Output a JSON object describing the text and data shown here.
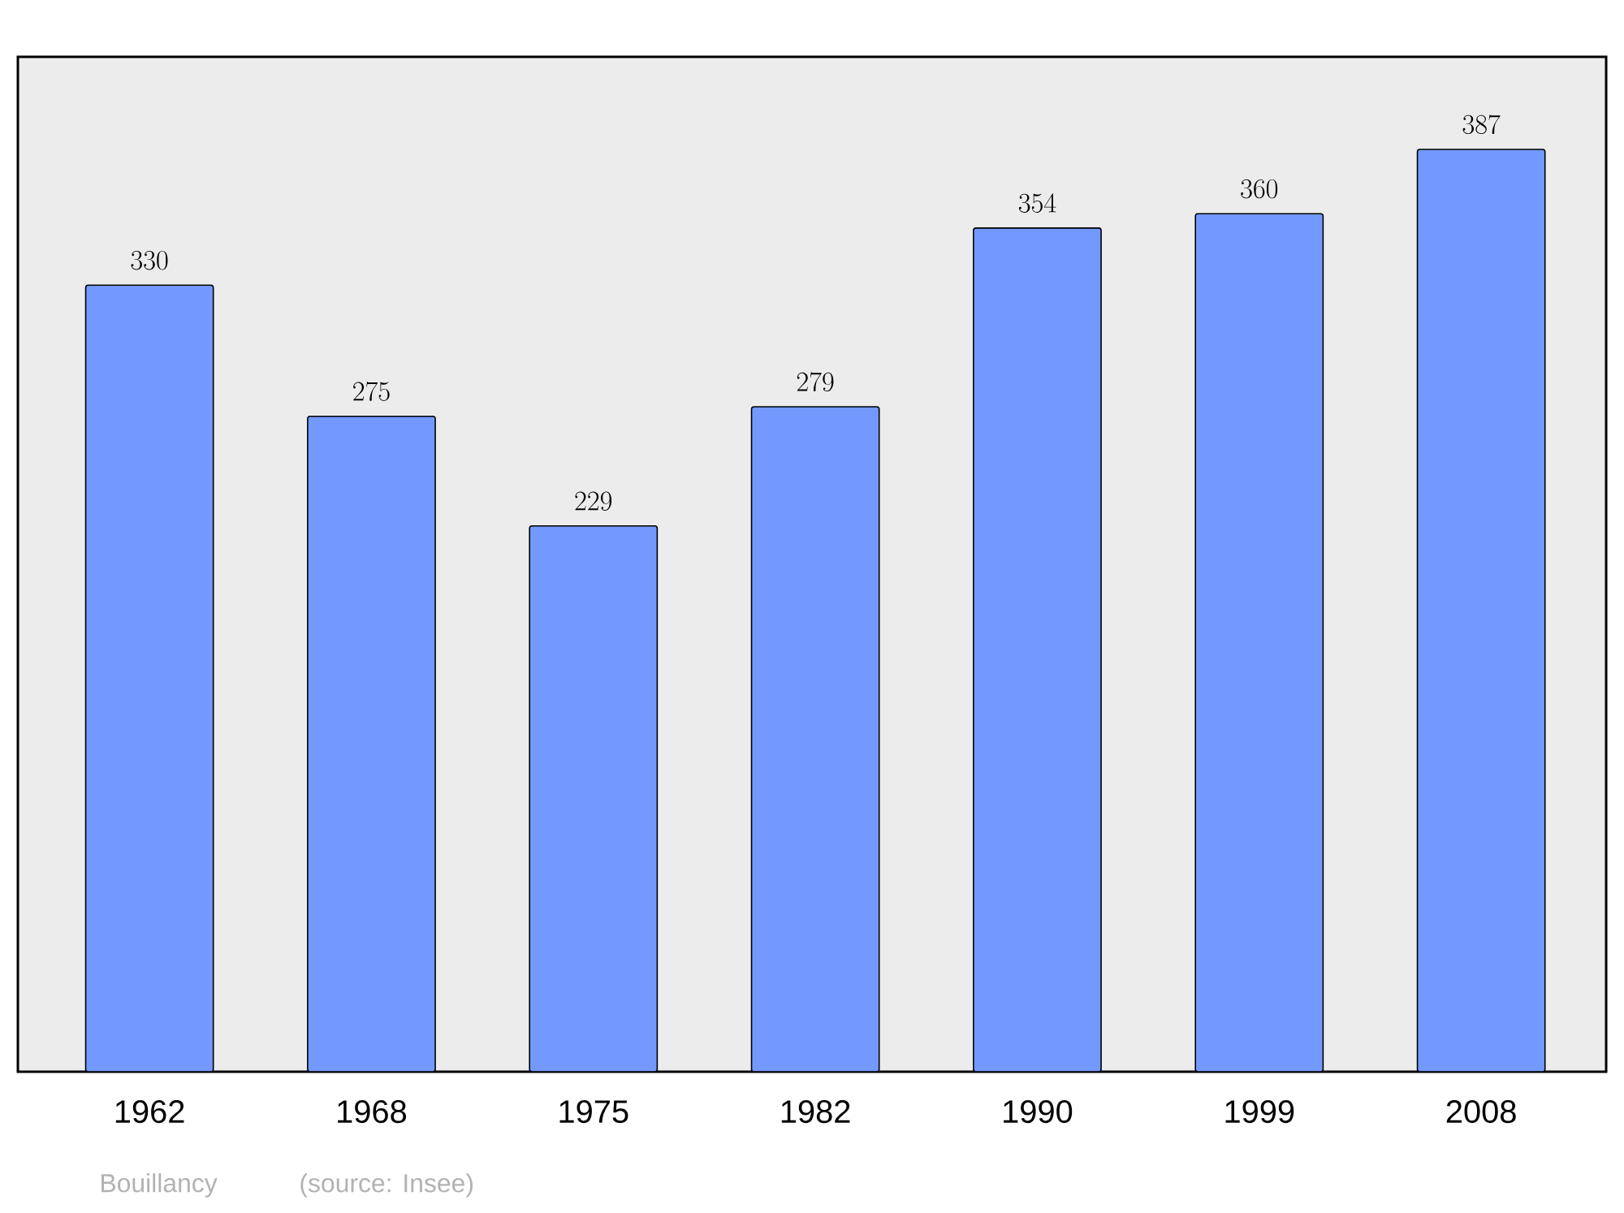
{
  "chart_data": {
    "type": "bar",
    "categories": [
      "1962",
      "1968",
      "1975",
      "1982",
      "1990",
      "1999",
      "2008"
    ],
    "values": [
      330,
      275,
      229,
      279,
      354,
      360,
      387
    ],
    "color": "#7399ff",
    "data_labels": true,
    "annotations": [
      "Bouillancy",
      "(source: Insee)"
    ]
  }
}
